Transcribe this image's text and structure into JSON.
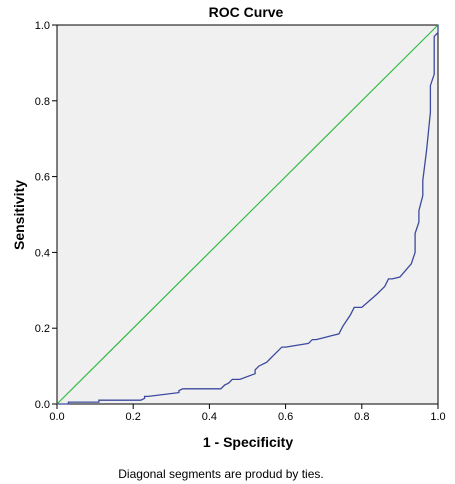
{
  "chart_data": {
    "type": "line",
    "title": "ROC Curve",
    "xlabel": "1 - Specificity",
    "ylabel": "Sensitivity",
    "xlim": [
      0,
      1
    ],
    "ylim": [
      0,
      1
    ],
    "xticks": [
      "0.0",
      "0.2",
      "0.4",
      "0.6",
      "0.8",
      "1.0"
    ],
    "yticks": [
      "0.0",
      "0.2",
      "0.4",
      "0.6",
      "0.8",
      "1.0"
    ],
    "grid": false,
    "footnote": "Diagonal segments are produd by ties.",
    "colors": {
      "plot_background": "#f0f0f0",
      "roc_curve": "#3c4a9e",
      "reference_line": "#33bb44"
    },
    "series": [
      {
        "x": [
          0.0,
          0.03,
          0.03,
          0.11,
          0.11,
          0.22,
          0.23,
          0.23,
          0.24,
          0.32,
          0.32,
          0.33,
          0.43,
          0.44,
          0.45,
          0.46,
          0.48,
          0.52,
          0.52,
          0.53,
          0.54,
          0.55,
          0.56,
          0.57,
          0.58,
          0.59,
          0.6,
          0.66,
          0.67,
          0.68,
          0.7,
          0.72,
          0.74,
          0.75,
          0.76,
          0.77,
          0.78,
          0.8,
          0.84,
          0.85,
          0.86,
          0.87,
          0.88,
          0.9,
          0.93,
          0.94,
          0.94,
          0.95,
          0.95,
          0.96,
          0.96,
          0.97,
          0.98,
          0.98,
          0.99,
          0.99,
          1.0,
          1.0
        ],
        "y": [
          0.0,
          0.0,
          0.005,
          0.005,
          0.01,
          0.01,
          0.015,
          0.02,
          0.02,
          0.03,
          0.035,
          0.04,
          0.04,
          0.05,
          0.055,
          0.065,
          0.065,
          0.08,
          0.09,
          0.1,
          0.105,
          0.11,
          0.12,
          0.13,
          0.14,
          0.15,
          0.15,
          0.16,
          0.17,
          0.17,
          0.175,
          0.18,
          0.185,
          0.205,
          0.22,
          0.235,
          0.255,
          0.255,
          0.29,
          0.3,
          0.31,
          0.33,
          0.33,
          0.335,
          0.37,
          0.4,
          0.45,
          0.48,
          0.51,
          0.55,
          0.59,
          0.67,
          0.77,
          0.84,
          0.87,
          0.97,
          0.98,
          1.0
        ]
      },
      {
        "x": [
          0,
          1
        ],
        "y": [
          0,
          1
        ]
      }
    ]
  }
}
